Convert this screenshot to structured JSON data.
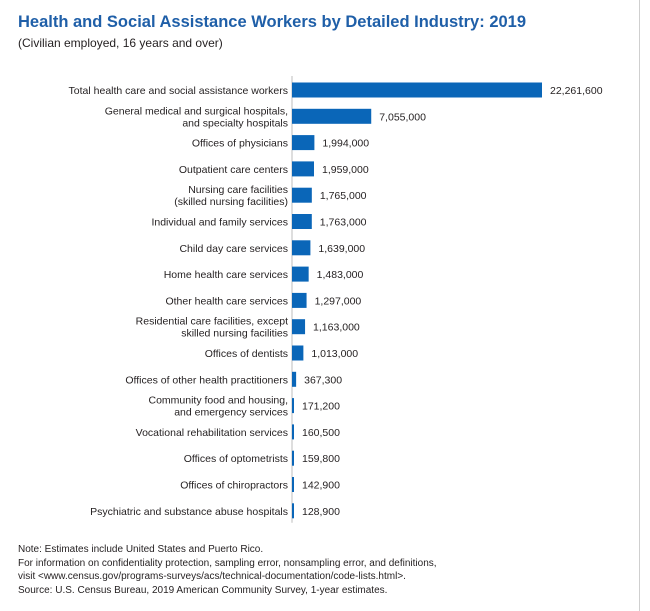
{
  "header": {
    "title": "Health and Social Assistance Workers by Detailed Industry: 2019",
    "subtitle": "(Civilian employed, 16 years and over)"
  },
  "chart_data": {
    "type": "bar",
    "orientation": "horizontal",
    "title": "Health and Social Assistance Workers by Detailed Industry: 2019",
    "subtitle": "(Civilian employed, 16 years and over)",
    "xlabel": "",
    "ylabel": "",
    "xlim": [
      0,
      22261600
    ],
    "grid": false,
    "bar_color": "#0a66b8",
    "categories": [
      [
        "Total health care and social assistance workers"
      ],
      [
        "General medical and surgical hospitals,",
        "and specialty hospitals"
      ],
      [
        "Offices of physicians"
      ],
      [
        "Outpatient care centers"
      ],
      [
        "Nursing care facilities",
        "(skilled nursing facilities)"
      ],
      [
        "Individual and family services"
      ],
      [
        "Child day care services"
      ],
      [
        "Home health care services"
      ],
      [
        "Other health care services"
      ],
      [
        "Residential care facilities, except",
        "skilled nursing facilities"
      ],
      [
        "Offices of dentists"
      ],
      [
        "Offices of other health practitioners"
      ],
      [
        "Community food and housing,",
        "and emergency services"
      ],
      [
        "Vocational rehabilitation services"
      ],
      [
        "Offices of optometrists"
      ],
      [
        "Offices of chiropractors"
      ],
      [
        "Psychiatric and substance abuse hospitals"
      ]
    ],
    "values": [
      22261600,
      7055000,
      1994000,
      1959000,
      1765000,
      1763000,
      1639000,
      1483000,
      1297000,
      1163000,
      1013000,
      367300,
      171200,
      160500,
      159800,
      142900,
      128900
    ],
    "value_labels": [
      "22,261,600",
      "7,055,000",
      "1,994,000",
      "1,959,000",
      "1,765,000",
      "1,763,000",
      "1,639,000",
      "1,483,000",
      "1,297,000",
      "1,163,000",
      "1,013,000",
      "367,300",
      "171,200",
      "160,500",
      "159,800",
      "142,900",
      "128,900"
    ]
  },
  "notes": {
    "line1": "Note: Estimates include United States and Puerto Rico.",
    "line2": "For information on confidentiality protection, sampling error, nonsampling error, and definitions,",
    "line3": "visit <www.census.gov/programs-surveys/acs/technical-documentation/code-lists.html>.",
    "line4": "Source: U.S. Census Bureau, 2019 American Community Survey, 1-year estimates."
  }
}
